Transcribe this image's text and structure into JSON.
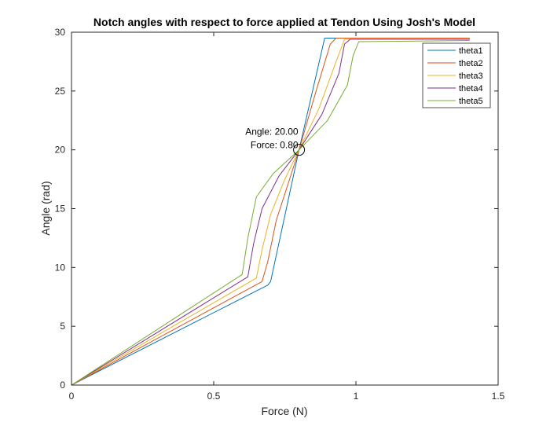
{
  "chart_data": {
    "type": "line",
    "title": "Notch angles with respect to force applied at Tendon Using Josh's Model",
    "xlabel": "Force (N)",
    "ylabel": "Angle (rad)",
    "xlim": [
      0,
      1.5
    ],
    "ylim": [
      0,
      30
    ],
    "xticks": [
      0,
      0.5,
      1,
      1.5
    ],
    "xtick_labels": [
      "0",
      "0.5",
      "1",
      "1.5"
    ],
    "yticks": [
      0,
      5,
      10,
      15,
      20,
      25,
      30
    ],
    "ytick_labels": [
      "0",
      "5",
      "10",
      "15",
      "20",
      "25",
      "30"
    ],
    "grid": false,
    "legend_position": "top-right",
    "series": [
      {
        "name": "theta1",
        "color": "#0072BD",
        "x": [
          0,
          0.69,
          0.7,
          0.8,
          0.89,
          0.9,
          1.4
        ],
        "y": [
          0,
          8.5,
          8.8,
          20.0,
          29.5,
          29.5,
          29.5
        ]
      },
      {
        "name": "theta2",
        "color": "#D95319",
        "x": [
          0,
          0.67,
          0.69,
          0.72,
          0.76,
          0.8,
          0.86,
          0.91,
          0.93,
          1.4
        ],
        "y": [
          0,
          8.8,
          10.5,
          14.0,
          17.0,
          20.0,
          25.0,
          29.0,
          29.5,
          29.5
        ]
      },
      {
        "name": "theta3",
        "color": "#EDB120",
        "x": [
          0,
          0.65,
          0.67,
          0.7,
          0.75,
          0.8,
          0.87,
          0.93,
          0.96,
          1.4
        ],
        "y": [
          0,
          9.1,
          11.5,
          14.5,
          17.5,
          20.0,
          23.5,
          27.5,
          29.4,
          29.4
        ]
      },
      {
        "name": "theta4",
        "color": "#7E2F8E",
        "x": [
          0,
          0.62,
          0.64,
          0.67,
          0.73,
          0.8,
          0.88,
          0.94,
          0.96,
          0.98,
          1.4
        ],
        "y": [
          0,
          9.2,
          12.0,
          15.0,
          17.8,
          20.0,
          23.0,
          26.5,
          29.0,
          29.4,
          29.4
        ]
      },
      {
        "name": "theta5",
        "color": "#77AC30",
        "x": [
          0,
          0.6,
          0.62,
          0.65,
          0.71,
          0.8,
          0.9,
          0.97,
          0.99,
          1.01,
          1.4
        ],
        "y": [
          0,
          9.4,
          12.5,
          16.0,
          18.0,
          20.0,
          22.5,
          25.5,
          28.0,
          29.2,
          29.3
        ]
      }
    ],
    "annotation": {
      "x": 0.8,
      "y": 20.0,
      "line1": "Angle: 20.00",
      "line2": "Force: 0.80"
    }
  }
}
